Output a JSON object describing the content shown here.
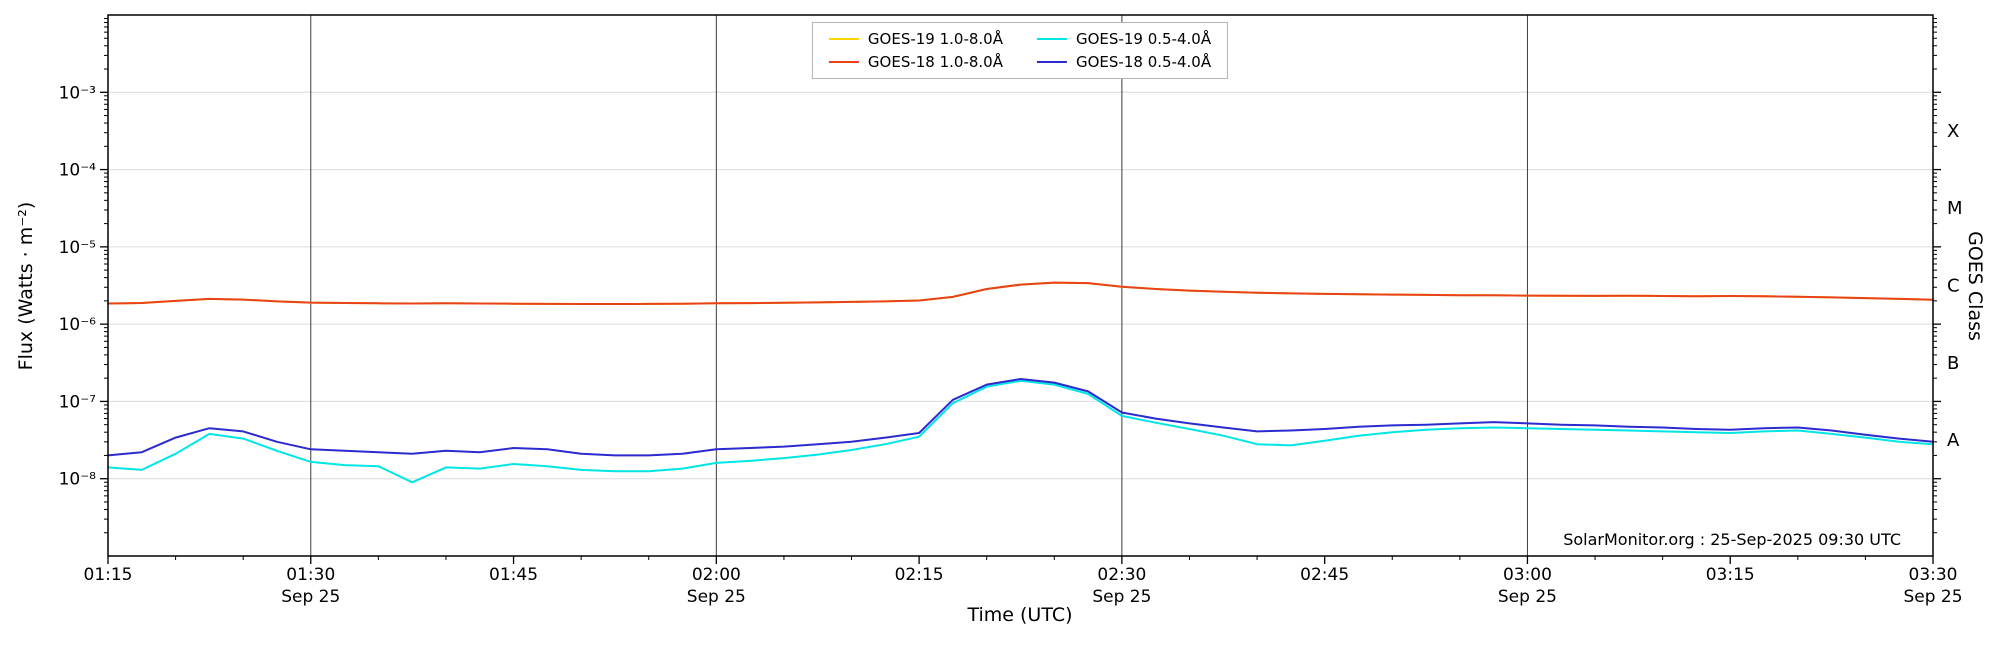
{
  "figure": {
    "credit": "SolarMonitor.org : 25-Sep-2025 09:30 UTC"
  },
  "chart_data": {
    "type": "line",
    "title": "",
    "xlabel": "Time (UTC)",
    "ylabel": "Flux (Watts · m⁻²)",
    "ylabel_right": "GOES Class",
    "x_axis_note": "minutes after 01:15 UTC, 25-Sep-2025",
    "x_range_minutes": [
      0,
      135
    ],
    "y_scale": "log",
    "y_range": [
      1e-09,
      0.01
    ],
    "legend_position": "top center",
    "grid": {
      "vertical_at_half_hours": true,
      "horizontal_at_decades": true
    },
    "colors": {
      "grid_vertical": "#3c3c3c",
      "grid_horizontal": "#dcdcdc",
      "axis": "#000000",
      "background": "#ffffff"
    },
    "x_ticks": [
      {
        "t": 0,
        "label": "01:15"
      },
      {
        "t": 15,
        "label": "01:30",
        "sub": "Sep 25",
        "grid": true
      },
      {
        "t": 30,
        "label": "01:45"
      },
      {
        "t": 45,
        "label": "02:00",
        "sub": "Sep 25",
        "grid": true
      },
      {
        "t": 60,
        "label": "02:15"
      },
      {
        "t": 75,
        "label": "02:30",
        "sub": "Sep 25",
        "grid": true
      },
      {
        "t": 90,
        "label": "02:45"
      },
      {
        "t": 105,
        "label": "03:00",
        "sub": "Sep 25",
        "grid": true
      },
      {
        "t": 120,
        "label": "03:15"
      },
      {
        "t": 135,
        "label": "03:30",
        "sub": "Sep 25"
      }
    ],
    "y_ticks": [
      {
        "exp": -3,
        "label": "10⁻³"
      },
      {
        "exp": -4,
        "label": "10⁻⁴"
      },
      {
        "exp": -5,
        "label": "10⁻⁵"
      },
      {
        "exp": -6,
        "label": "10⁻⁶"
      },
      {
        "exp": -7,
        "label": "10⁻⁷"
      },
      {
        "exp": -8,
        "label": "10⁻⁸"
      }
    ],
    "goes_classes": [
      {
        "label": "X",
        "log_center": -3.5
      },
      {
        "label": "M",
        "log_center": -4.5
      },
      {
        "label": "C",
        "log_center": -5.5
      },
      {
        "label": "B",
        "log_center": -6.5
      },
      {
        "label": "A",
        "log_center": -7.5
      }
    ],
    "x_minutes": [
      0,
      2.5,
      5,
      7.5,
      10,
      12.5,
      15,
      17.5,
      20,
      22.5,
      25,
      27.5,
      30,
      32.5,
      35,
      37.5,
      40,
      42.5,
      45,
      47.5,
      50,
      52.5,
      55,
      57.5,
      60,
      62.5,
      65,
      67.5,
      70,
      72.5,
      75,
      77.5,
      80,
      82.5,
      85,
      87.5,
      90,
      92.5,
      95,
      97.5,
      100,
      102.5,
      105,
      107.5,
      110,
      112.5,
      115,
      117.5,
      120,
      122.5,
      125,
      127.5,
      130,
      132.5,
      135
    ],
    "series": [
      {
        "name": "GOES-19 1.0-8.0Å",
        "color": "#ffd300",
        "values": [
          1.85e-06,
          1.88e-06,
          2e-06,
          2.12e-06,
          2.08e-06,
          1.97e-06,
          1.9e-06,
          1.88e-06,
          1.86e-06,
          1.85e-06,
          1.86e-06,
          1.85e-06,
          1.84e-06,
          1.83e-06,
          1.82e-06,
          1.82e-06,
          1.83e-06,
          1.84e-06,
          1.86e-06,
          1.87e-06,
          1.89e-06,
          1.91e-06,
          1.94e-06,
          1.97e-06,
          2.02e-06,
          2.25e-06,
          2.85e-06,
          3.25e-06,
          3.45e-06,
          3.4e-06,
          3.05e-06,
          2.85e-06,
          2.72e-06,
          2.62e-06,
          2.55e-06,
          2.5e-06,
          2.46e-06,
          2.43e-06,
          2.41e-06,
          2.39e-06,
          2.37e-06,
          2.36e-06,
          2.34e-06,
          2.33e-06,
          2.32e-06,
          2.33e-06,
          2.31e-06,
          2.3e-06,
          2.31e-06,
          2.29e-06,
          2.26e-06,
          2.22e-06,
          2.17e-06,
          2.12e-06,
          2.07e-06
        ]
      },
      {
        "name": "GOES-18 1.0-8.0Å",
        "color": "#e8421a",
        "values": [
          1.85e-06,
          1.88e-06,
          2e-06,
          2.12e-06,
          2.08e-06,
          1.97e-06,
          1.9e-06,
          1.88e-06,
          1.86e-06,
          1.85e-06,
          1.86e-06,
          1.85e-06,
          1.84e-06,
          1.83e-06,
          1.82e-06,
          1.82e-06,
          1.83e-06,
          1.84e-06,
          1.86e-06,
          1.87e-06,
          1.89e-06,
          1.91e-06,
          1.94e-06,
          1.97e-06,
          2.02e-06,
          2.25e-06,
          2.85e-06,
          3.25e-06,
          3.45e-06,
          3.4e-06,
          3.05e-06,
          2.85e-06,
          2.72e-06,
          2.62e-06,
          2.55e-06,
          2.5e-06,
          2.46e-06,
          2.43e-06,
          2.41e-06,
          2.39e-06,
          2.37e-06,
          2.36e-06,
          2.34e-06,
          2.33e-06,
          2.32e-06,
          2.33e-06,
          2.31e-06,
          2.3e-06,
          2.31e-06,
          2.29e-06,
          2.26e-06,
          2.22e-06,
          2.17e-06,
          2.12e-06,
          2.07e-06
        ]
      },
      {
        "name": "GOES-19 0.5-4.0Å",
        "color": "#00e5e5",
        "values": [
          1.4e-08,
          1.3e-08,
          2.1e-08,
          3.8e-08,
          3.3e-08,
          2.3e-08,
          1.65e-08,
          1.5e-08,
          1.45e-08,
          9e-09,
          1.4e-08,
          1.35e-08,
          1.55e-08,
          1.45e-08,
          1.3e-08,
          1.25e-08,
          1.25e-08,
          1.35e-08,
          1.6e-08,
          1.7e-08,
          1.85e-08,
          2.05e-08,
          2.35e-08,
          2.8e-08,
          3.5e-08,
          9.5e-08,
          1.55e-07,
          1.85e-07,
          1.65e-07,
          1.25e-07,
          6.5e-08,
          5.3e-08,
          4.4e-08,
          3.6e-08,
          2.8e-08,
          2.7e-08,
          3.1e-08,
          3.6e-08,
          4e-08,
          4.3e-08,
          4.5e-08,
          4.6e-08,
          4.5e-08,
          4.4e-08,
          4.3e-08,
          4.2e-08,
          4.1e-08,
          4e-08,
          3.9e-08,
          4.1e-08,
          4.2e-08,
          3.8e-08,
          3.4e-08,
          3e-08,
          2.8e-08
        ]
      },
      {
        "name": "GOES-18 0.5-4.0Å",
        "color": "#2b2bd0",
        "values": [
          2e-08,
          2.2e-08,
          3.4e-08,
          4.5e-08,
          4.1e-08,
          3e-08,
          2.4e-08,
          2.3e-08,
          2.2e-08,
          2.1e-08,
          2.3e-08,
          2.2e-08,
          2.5e-08,
          2.4e-08,
          2.1e-08,
          2e-08,
          2e-08,
          2.1e-08,
          2.4e-08,
          2.5e-08,
          2.6e-08,
          2.8e-08,
          3e-08,
          3.4e-08,
          3.9e-08,
          1.05e-07,
          1.65e-07,
          1.95e-07,
          1.75e-07,
          1.35e-07,
          7.2e-08,
          6e-08,
          5.2e-08,
          4.6e-08,
          4.1e-08,
          4.2e-08,
          4.4e-08,
          4.7e-08,
          4.9e-08,
          5e-08,
          5.2e-08,
          5.4e-08,
          5.2e-08,
          5e-08,
          4.9e-08,
          4.7e-08,
          4.6e-08,
          4.4e-08,
          4.3e-08,
          4.5e-08,
          4.6e-08,
          4.2e-08,
          3.7e-08,
          3.3e-08,
          3e-08
        ]
      }
    ]
  }
}
